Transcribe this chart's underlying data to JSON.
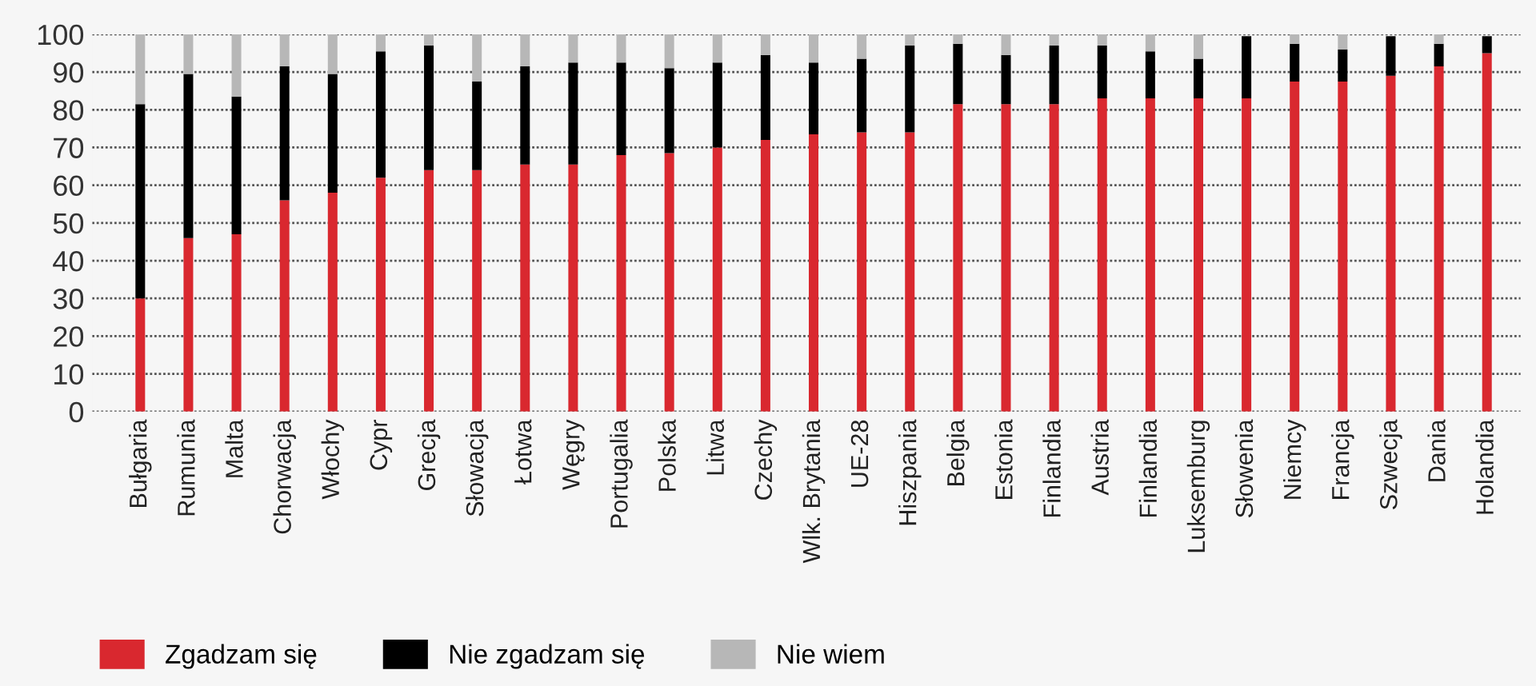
{
  "chart_data": {
    "type": "bar",
    "stacked": true,
    "categories": [
      "Bułgaria",
      "Rumunia",
      "Malta",
      "Chorwacja",
      "Włochy",
      "Cypr",
      "Grecja",
      "Słowacja",
      "Łotwa",
      "Węgry",
      "Portugalia",
      "Polska",
      "Litwa",
      "Czechy",
      "Wlk. Brytania",
      "UE-28",
      "Hiszpania",
      "Belgia",
      "Estonia",
      "Finlandia",
      "Austria",
      "Finlandia",
      "Luksemburg",
      "Słowenia",
      "Niemcy",
      "Francja",
      "Szwecja",
      "Dania",
      "Holandia"
    ],
    "series": [
      {
        "name": "Zgadzam się",
        "color": "#d9282f",
        "values": [
          30,
          46,
          47,
          56,
          58,
          62,
          64,
          64,
          65.5,
          65.5,
          68,
          68.5,
          70,
          72,
          73.5,
          74,
          74,
          81.5,
          81.5,
          81.5,
          83,
          83,
          83,
          83,
          87.5,
          87.5,
          89,
          91.5,
          95
        ]
      },
      {
        "name": "Nie zgadzam się",
        "color": "#000000",
        "values": [
          51.5,
          43.5,
          36.5,
          35.5,
          31.5,
          33.5,
          33,
          23.5,
          26,
          27,
          24.5,
          22.5,
          22.5,
          22.5,
          19,
          19.5,
          23,
          16,
          13,
          15.5,
          14,
          12.5,
          10.5,
          16.5,
          10,
          8.5,
          10.5,
          6,
          4.5
        ]
      },
      {
        "name": "Nie wiem",
        "color": "#b7b7b7",
        "values": [
          18.5,
          10.5,
          16.5,
          8.5,
          10.5,
          4.5,
          3,
          12.5,
          8.5,
          7.5,
          7.5,
          9,
          7.5,
          5.5,
          7.5,
          6.5,
          3,
          2.5,
          5.5,
          3,
          3,
          4.5,
          6.5,
          null,
          2.5,
          4,
          null,
          2.5,
          null
        ]
      }
    ],
    "ylim": [
      0,
      100
    ],
    "yticks": [
      0,
      10,
      20,
      30,
      40,
      50,
      60,
      70,
      80,
      90,
      100
    ],
    "grid": "y",
    "legend": "bottom left"
  }
}
